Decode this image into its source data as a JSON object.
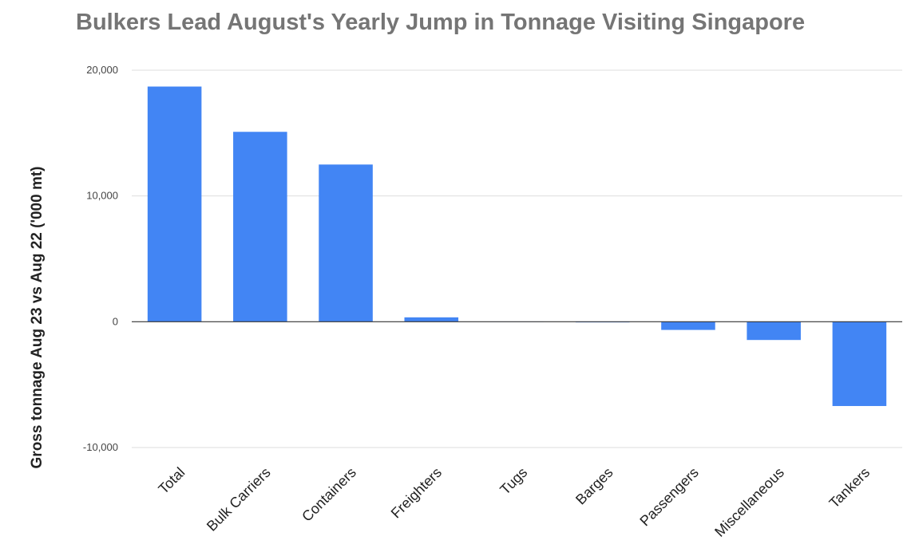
{
  "chart_data": {
    "type": "bar",
    "title": "Bulkers Lead August's Yearly Jump in Tonnage Visiting Singapore",
    "xlabel": "",
    "ylabel": "Gross tonnage Aug 23 vs Aug 22 ('000 mt)",
    "categories": [
      "Total",
      "Bulk Carriers",
      "Containers",
      "Freighters",
      "Tugs",
      "Barges",
      "Passengers",
      "Miscellaneous",
      "Tankers"
    ],
    "values": [
      18700,
      15100,
      12500,
      350,
      20,
      -50,
      -650,
      -1450,
      -6700
    ],
    "ylim": [
      -10000,
      20000
    ],
    "yticks": [
      -10000,
      0,
      10000,
      20000
    ],
    "ytick_labels": [
      "-10,000",
      "0",
      "10,000",
      "20,000"
    ],
    "grid": true,
    "legend": "none",
    "bar_color": "#4285f4"
  }
}
